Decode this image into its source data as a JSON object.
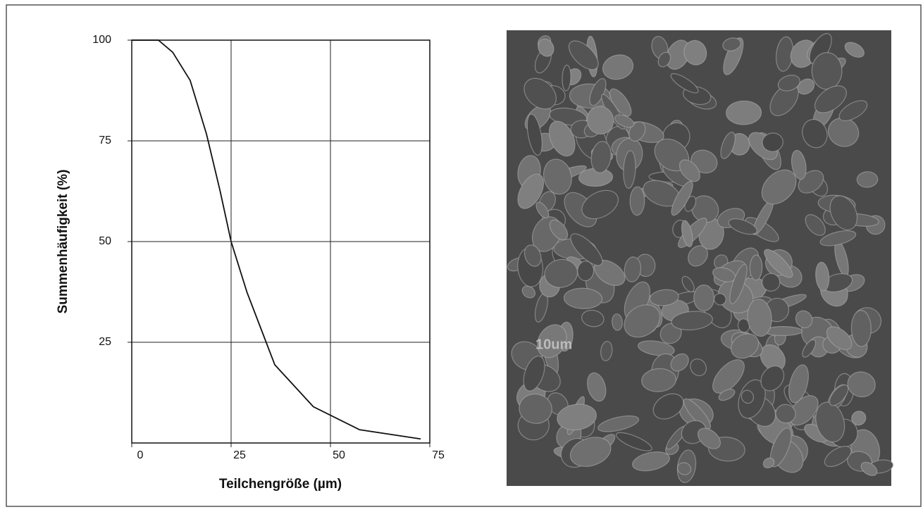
{
  "chart_data": {
    "type": "line",
    "x": [
      0,
      6.7,
      10.3,
      14.7,
      18.8,
      22.2,
      25,
      29,
      36,
      45.7,
      57.3,
      72.7
    ],
    "values": [
      100,
      100,
      97,
      90,
      76.7,
      62.7,
      50,
      37.4,
      19.4,
      9,
      3.3,
      1
    ],
    "color": "#111111",
    "xlabel": "Teilchengröße (µm)",
    "ylabel": "Summenhäufigkeit (%)",
    "xlim": [
      0,
      75
    ],
    "ylim": [
      0,
      100
    ],
    "xticks": [
      0,
      25,
      50,
      75
    ],
    "yticks": [
      25,
      50,
      75,
      100
    ],
    "grid": true
  },
  "image": {
    "scale_label": "10um"
  }
}
